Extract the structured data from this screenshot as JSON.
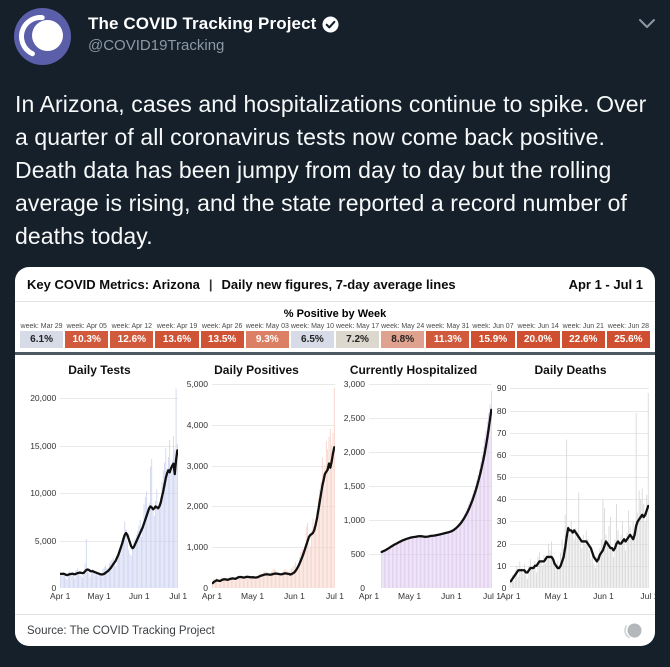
{
  "tweet": {
    "display_name": "The COVID Tracking Project",
    "handle": "@COVID19Tracking",
    "body": "In Arizona, cases and hospitalizations continue to spike. Over a quarter of all coronavirus tests now come back positive. Death data has been jumpy from day to day but the rolling average is rising, and the state reported a record number of deaths today."
  },
  "card": {
    "title": "Key COVID Metrics: Arizona",
    "separator": "|",
    "subtitle": "Daily new figures, 7-day average lines",
    "date_range": "Apr 1 - Jul 1",
    "positivity": {
      "title": "% Positive by Week",
      "weeks": [
        {
          "label": "week: Mar 29",
          "value": "6.1%",
          "bg": "#d7dbe8",
          "fg": "#222222"
        },
        {
          "label": "week: Apr 05",
          "value": "10.3%",
          "bg": "#d15a3d",
          "fg": "#ffffff"
        },
        {
          "label": "week: Apr 12",
          "value": "12.6%",
          "bg": "#d15a3d",
          "fg": "#ffffff"
        },
        {
          "label": "week: Apr 19",
          "value": "13.6%",
          "bg": "#cf5436",
          "fg": "#ffffff"
        },
        {
          "label": "week: Apr 26",
          "value": "13.5%",
          "bg": "#cf5436",
          "fg": "#ffffff"
        },
        {
          "label": "week: May 03",
          "value": "9.3%",
          "bg": "#dc8065",
          "fg": "#ffffff"
        },
        {
          "label": "week: May 10",
          "value": "6.5%",
          "bg": "#d7dbe8",
          "fg": "#222222"
        },
        {
          "label": "week: May 17",
          "value": "7.2%",
          "bg": "#dcd8cd",
          "fg": "#222222"
        },
        {
          "label": "week: May 24",
          "value": "8.8%",
          "bg": "#dfa28e",
          "fg": "#222222"
        },
        {
          "label": "week: May 31",
          "value": "11.3%",
          "bg": "#d15a3d",
          "fg": "#ffffff"
        },
        {
          "label": "week: Jun 07",
          "value": "15.9%",
          "bg": "#cf5030",
          "fg": "#ffffff"
        },
        {
          "label": "week: Jun 14",
          "value": "20.0%",
          "bg": "#cf5030",
          "fg": "#ffffff"
        },
        {
          "label": "week: Jun 21",
          "value": "22.6%",
          "bg": "#cf5030",
          "fg": "#ffffff"
        },
        {
          "label": "week: Jun 28",
          "value": "25.6%",
          "bg": "#cf5030",
          "fg": "#ffffff"
        }
      ]
    },
    "footer": {
      "source": "Source: The COVID Tracking Project"
    }
  },
  "colors": {
    "page_bg": "#15202b",
    "tweet_text": "#f7f9f9",
    "handle_gray": "#8b98a5",
    "avatar_purple": "#5b5fa9",
    "card_bg": "#ffffff",
    "divider_dark": "#4c5a64",
    "gridline": "#e9e9e9",
    "avg_line": "#111111"
  },
  "chart_data": [
    {
      "type": "bar",
      "title": "Daily Tests",
      "x_ticks": [
        "Apr 1",
        "May 1",
        "Jun 1",
        "Jul 1"
      ],
      "x_tick_pos": [
        0,
        0.33,
        0.67,
        1
      ],
      "y_ticks": [
        0,
        5000,
        10000,
        15000,
        20000
      ],
      "y_tick_labels": [
        "0",
        "5,000",
        "10,000",
        "15,000",
        "20,000"
      ],
      "ylim": [
        0,
        21500
      ],
      "bar_color": "#ccd2f0",
      "line_color": "#111111",
      "bars": [
        1500,
        1300,
        1700,
        1400,
        1100,
        900,
        1600,
        1800,
        1500,
        1700,
        1400,
        1000,
        1900,
        2100,
        1700,
        1600,
        1300,
        1100,
        1800,
        2600,
        5200,
        1900,
        1600,
        1200,
        1500,
        2000,
        1700,
        1400,
        1500,
        1300,
        1600,
        1400,
        1200,
        2000,
        2200,
        2400,
        2100,
        1800,
        2600,
        2800,
        3000,
        3200,
        2700,
        2300,
        3400,
        3800,
        4200,
        4600,
        5000,
        5600,
        7000,
        6200,
        4800,
        4000,
        3600,
        3400,
        4400,
        4800,
        5200,
        5600,
        6000,
        6600,
        7200,
        5400,
        6200,
        8800,
        9600,
        10200,
        8400,
        9000,
        12800,
        13600,
        8200,
        7600,
        9200,
        10400,
        8600,
        8800,
        9600,
        11200,
        12400,
        13200,
        14800,
        12600,
        13800,
        15600,
        12200,
        13400,
        16000,
        14600,
        21000,
        15200
      ],
      "avg_line": [
        1500,
        1480,
        1500,
        1480,
        1400,
        1350,
        1400,
        1450,
        1480,
        1500,
        1480,
        1450,
        1500,
        1560,
        1600,
        1620,
        1600,
        1560,
        1600,
        1750,
        1900,
        1950,
        1900,
        1800,
        1750,
        1780,
        1700,
        1650,
        1600,
        1550,
        1500,
        1450,
        1420,
        1450,
        1500,
        1600,
        1700,
        1800,
        1950,
        2100,
        2300,
        2500,
        2700,
        2900,
        3200,
        3500,
        3900,
        4300,
        4700,
        5200,
        5600,
        5800,
        5600,
        5200,
        4800,
        4400,
        4200,
        4300,
        4600,
        4900,
        5200,
        5500,
        5800,
        6100,
        6400,
        6800,
        7200,
        7600,
        8000,
        8400,
        8600,
        8500,
        8300,
        8400,
        8600,
        8500,
        8400,
        8600,
        9000,
        9600,
        10200,
        10900,
        11600,
        12100,
        12400,
        12200,
        12600,
        12900,
        13100,
        12000,
        13500,
        14500
      ]
    },
    {
      "type": "bar",
      "title": "Daily Positives",
      "x_ticks": [
        "Apr 1",
        "May 1",
        "Jun 1",
        "Jul 1"
      ],
      "x_tick_pos": [
        0,
        0.33,
        0.67,
        1
      ],
      "y_ticks": [
        0,
        1000,
        2000,
        3000,
        4000,
        5000
      ],
      "y_tick_labels": [
        "0",
        "1,000",
        "2,000",
        "3,000",
        "4,000",
        "5,000"
      ],
      "ylim": [
        0,
        5000
      ],
      "bar_color": "#f6d0c6",
      "line_color": "#111111",
      "bars": [
        150,
        220,
        180,
        250,
        130,
        100,
        200,
        260,
        240,
        210,
        190,
        160,
        230,
        280,
        250,
        240,
        200,
        170,
        260,
        300,
        280,
        260,
        230,
        200,
        270,
        310,
        290,
        260,
        240,
        220,
        250,
        230,
        200,
        280,
        320,
        350,
        330,
        300,
        380,
        420,
        400,
        380,
        350,
        320,
        400,
        450,
        480,
        440,
        400,
        380,
        360,
        340,
        380,
        420,
        460,
        440,
        400,
        380,
        420,
        480,
        520,
        560,
        640,
        500,
        580,
        760,
        880,
        960,
        840,
        900,
        1500,
        1600,
        1100,
        1000,
        1400,
        1700,
        1500,
        1600,
        1900,
        2200,
        2400,
        2600,
        3200,
        2800,
        3000,
        3600,
        3400,
        3700,
        3900,
        3500,
        3800,
        4900
      ],
      "avg_line": [
        120,
        150,
        170,
        190,
        180,
        170,
        180,
        200,
        210,
        215,
        210,
        200,
        210,
        220,
        230,
        235,
        230,
        225,
        240,
        260,
        270,
        270,
        265,
        255,
        260,
        270,
        275,
        270,
        265,
        260,
        265,
        260,
        255,
        260,
        270,
        285,
        300,
        310,
        320,
        330,
        335,
        335,
        330,
        325,
        330,
        340,
        350,
        355,
        350,
        345,
        340,
        335,
        340,
        350,
        360,
        355,
        350,
        345,
        330,
        340,
        360,
        380,
        420,
        470,
        530,
        600,
        680,
        760,
        850,
        950,
        1050,
        1150,
        1250,
        1300,
        1320,
        1350,
        1420,
        1550,
        1700,
        1900,
        2100,
        2300,
        2500,
        2650,
        2800,
        2850,
        2900,
        3050,
        2950,
        3100,
        3300,
        3450
      ]
    },
    {
      "type": "bar",
      "title": "Currently Hospitalized",
      "x_ticks": [
        "Apr 1",
        "May 1",
        "Jun 1",
        "Jul 1"
      ],
      "x_tick_pos": [
        0,
        0.33,
        0.67,
        1
      ],
      "y_ticks": [
        0,
        500,
        1000,
        1500,
        2000,
        2500,
        3000
      ],
      "y_tick_labels": [
        "0",
        "500",
        "1,000",
        "1,500",
        "2,000",
        "2,500",
        "3,000"
      ],
      "ylim": [
        0,
        3000
      ],
      "bar_color": "#dcc7ec",
      "line_color": "#111111",
      "bars": [
        null,
        null,
        null,
        null,
        null,
        null,
        null,
        null,
        null,
        530,
        545,
        540,
        560,
        575,
        590,
        600,
        615,
        625,
        640,
        650,
        660,
        670,
        685,
        695,
        705,
        715,
        720,
        730,
        735,
        740,
        745,
        750,
        755,
        748,
        752,
        760,
        765,
        758,
        762,
        755,
        750,
        748,
        752,
        758,
        762,
        768,
        772,
        765,
        770,
        775,
        780,
        785,
        790,
        795,
        800,
        805,
        810,
        815,
        820,
        825,
        830,
        840,
        855,
        870,
        890,
        910,
        930,
        950,
        980,
        1010,
        1050,
        1090,
        1130,
        1180,
        1230,
        1280,
        1330,
        1380,
        1440,
        1510,
        1580,
        1660,
        1750,
        1850,
        1960,
        2080,
        2200,
        2320,
        2450,
        2570,
        2700,
        2900
      ],
      "avg_line": [
        null,
        null,
        null,
        null,
        null,
        null,
        null,
        null,
        null,
        530,
        540,
        548,
        558,
        570,
        582,
        595,
        608,
        620,
        632,
        643,
        653,
        663,
        674,
        684,
        694,
        703,
        710,
        718,
        725,
        731,
        737,
        742,
        747,
        750,
        752,
        756,
        760,
        761,
        762,
        760,
        757,
        754,
        753,
        755,
        758,
        762,
        766,
        768,
        770,
        773,
        777,
        781,
        785,
        790,
        795,
        800,
        805,
        810,
        815,
        820,
        826,
        833,
        843,
        855,
        870,
        887,
        906,
        927,
        950,
        976,
        1005,
        1037,
        1072,
        1110,
        1152,
        1197,
        1246,
        1298,
        1355,
        1415,
        1480,
        1550,
        1625,
        1705,
        1790,
        1880,
        1980,
        2090,
        2210,
        2340,
        2480,
        2620
      ]
    },
    {
      "type": "bar",
      "title": "Daily Deaths",
      "x_ticks": [
        "Apr 1",
        "May 1",
        "Jun 1",
        "Jul 1"
      ],
      "x_tick_pos": [
        0,
        0.33,
        0.67,
        1
      ],
      "y_ticks": [
        0,
        10,
        20,
        30,
        40,
        50,
        60,
        70,
        80,
        90
      ],
      "y_tick_labels": [
        "0",
        "10",
        "20",
        "30",
        "40",
        "50",
        "60",
        "70",
        "80",
        "90"
      ],
      "ylim": [
        0,
        92
      ],
      "bar_color": "#d6d6d6",
      "line_color": "#111111",
      "bars": [
        4,
        6,
        3,
        8,
        10,
        5,
        12,
        9,
        7,
        11,
        6,
        4,
        10,
        13,
        9,
        8,
        12,
        7,
        14,
        16,
        12,
        10,
        15,
        11,
        13,
        20,
        17,
        21,
        14,
        10,
        8,
        12,
        9,
        16,
        22,
        18,
        33,
        67,
        28,
        24,
        30,
        26,
        22,
        27,
        25,
        43,
        21,
        18,
        24,
        20,
        26,
        22,
        17,
        13,
        15,
        11,
        9,
        14,
        12,
        18,
        22,
        40,
        36,
        24,
        20,
        28,
        32,
        18,
        14,
        22,
        38,
        26,
        20,
        24,
        30,
        21,
        17,
        25,
        35,
        28,
        22,
        30,
        26,
        79,
        34,
        44,
        40,
        45,
        38,
        30,
        42,
        88
      ],
      "avg_line": [
        3,
        4,
        5,
        6,
        7,
        8,
        8,
        8,
        8,
        8,
        7,
        7,
        8,
        9,
        9,
        9,
        10,
        10,
        11,
        12,
        12,
        12,
        12,
        13,
        14,
        14,
        14,
        14,
        13,
        11,
        10,
        9,
        9,
        10,
        12,
        14,
        18,
        23,
        27,
        26,
        26,
        25,
        26,
        25,
        24,
        23,
        22,
        21,
        21,
        21,
        21,
        20,
        19,
        18,
        16,
        14,
        13,
        12,
        13,
        15,
        16,
        17,
        19,
        21,
        20,
        19,
        18,
        18,
        17,
        18,
        20,
        21,
        20,
        20,
        21,
        22,
        21,
        22,
        23,
        24,
        23,
        22,
        24,
        28,
        30,
        31,
        32,
        33,
        32,
        33,
        35,
        37
      ]
    }
  ]
}
